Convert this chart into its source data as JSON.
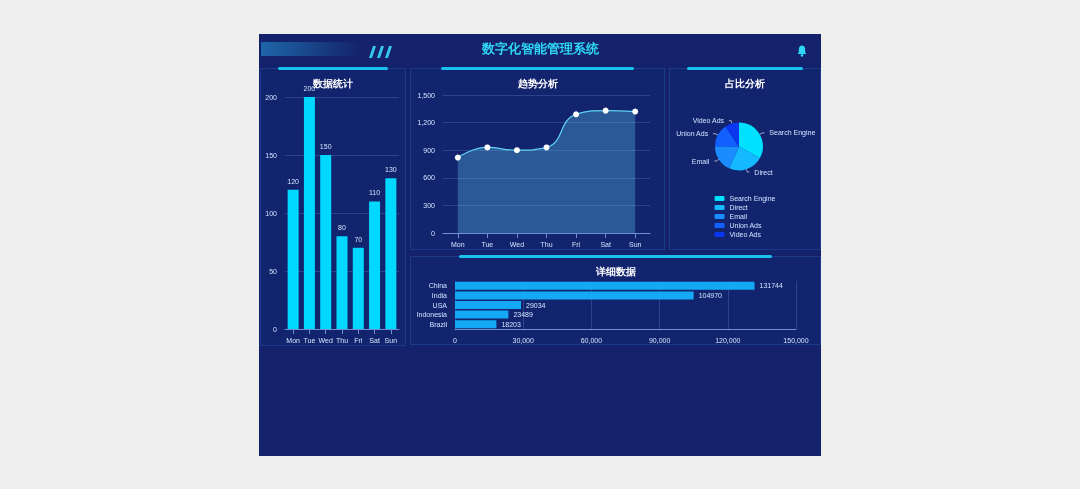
{
  "chart_data": [
    {
      "type": "other",
      "title": "数字化智能管理系统"
    },
    {
      "type": "bar",
      "title": "数据统计",
      "categories": [
        "Mon",
        "Tue",
        "Wed",
        "Thu",
        "Fri",
        "Sat",
        "Sun"
      ],
      "values": [
        120,
        200,
        150,
        80,
        70,
        110,
        130
      ],
      "color": "#00d8ff",
      "ylim": [
        0,
        200
      ],
      "yticks": [
        0,
        50,
        100,
        150,
        200
      ],
      "grid": "y",
      "data_labels": true
    },
    {
      "type": "area",
      "title": "趋势分析",
      "categories": [
        "Mon",
        "Tue",
        "Wed",
        "Thu",
        "Fri",
        "Sat",
        "Sun"
      ],
      "values": [
        820,
        930,
        900,
        930,
        1290,
        1330,
        1320
      ],
      "color": "#5fd3f3",
      "ylim": [
        0,
        1500
      ],
      "yticks": [
        0,
        300,
        600,
        900,
        {
          "value": 1200,
          "label": "1,200"
        },
        {
          "value": 1500,
          "label": "1,500"
        }
      ],
      "grid": "y",
      "marker": "circle"
    },
    {
      "type": "pie",
      "title": "占比分析",
      "categories": [
        "Search Engine",
        "Direct",
        "Email",
        "Union Ads",
        "Video Ads"
      ],
      "values": [
        33.3,
        23.4,
        18.4,
        15.4,
        9.5
      ],
      "colors": [
        "#00e1ff",
        "#14b9ff",
        "#1a8cff",
        "#1160ff",
        "#0a36f0"
      ],
      "legend": "bottom"
    },
    {
      "type": "bar",
      "orientation": "horizontal",
      "title": "详细数据",
      "categories": [
        "China",
        "India",
        "USA",
        "Indonesia",
        "Brazil"
      ],
      "values": [
        131744,
        104970,
        29034,
        23489,
        18203
      ],
      "color": "#14a8f5",
      "xlim": [
        0,
        150000
      ],
      "xticks": [
        0,
        {
          "value": 30000,
          "label": "30,000"
        },
        {
          "value": 60000,
          "label": "60,000"
        },
        {
          "value": 90000,
          "label": "90,000"
        },
        {
          "value": 120000,
          "label": "120,000"
        },
        {
          "value": 150000,
          "label": "150,000"
        }
      ],
      "grid": "x",
      "data_labels": true
    }
  ]
}
